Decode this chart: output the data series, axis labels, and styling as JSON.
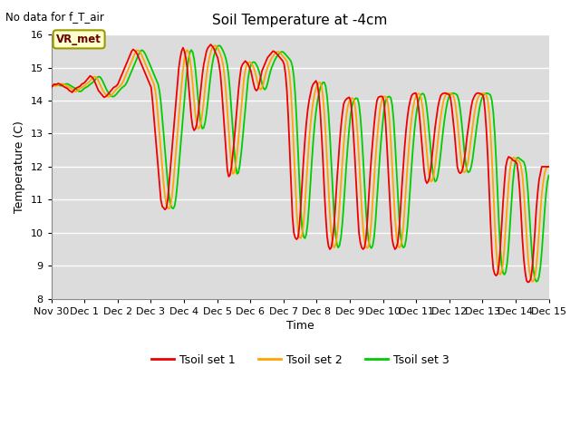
{
  "title": "Soil Temperature at -4cm",
  "xlabel": "Time",
  "ylabel": "Temperature (C)",
  "note": "No data for f_T_air",
  "legend_label": "VR_met",
  "ylim": [
    8.0,
    16.0
  ],
  "yticks": [
    8.0,
    9.0,
    10.0,
    11.0,
    12.0,
    13.0,
    14.0,
    15.0,
    16.0
  ],
  "axes_bg": "#dcdcdc",
  "line1_color": "#ee0000",
  "line2_color": "#ffa500",
  "line3_color": "#00cc00",
  "line_width": 1.3,
  "legend1": "Tsoil set 1",
  "legend2": "Tsoil set 2",
  "legend3": "Tsoil set 3",
  "xtick_labels": [
    "Nov 30",
    "Dec 1",
    "Dec 2",
    "Dec 3",
    "Dec 4",
    "Dec 5",
    "Dec 6",
    "Dec 7",
    "Dec 8",
    "Dec 9",
    "Dec 10",
    "Dec 11",
    "Dec 12",
    "Dec 13",
    "Dec 14",
    "Dec 15"
  ]
}
